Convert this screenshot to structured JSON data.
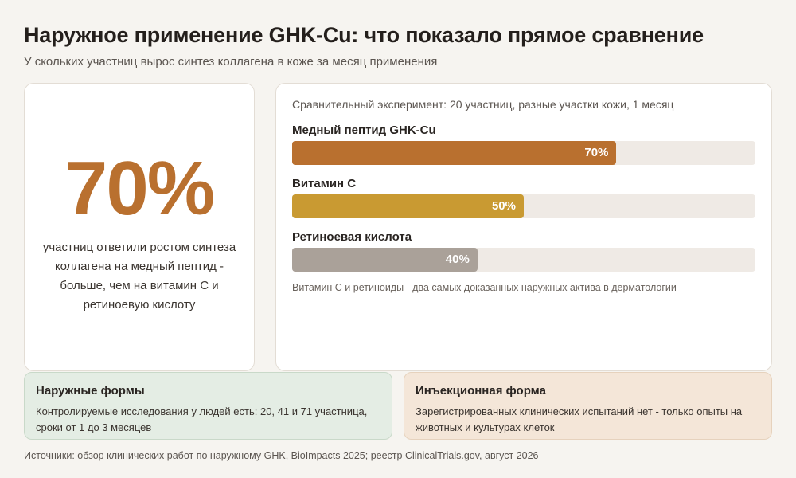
{
  "header": {
    "title": "Наружное применение GHK-Cu: что показало прямое сравнение",
    "subtitle": "У скольких участниц вырос синтез коллагена в коже за месяц применения"
  },
  "highlight": {
    "value": "70%",
    "text": "участниц ответили ростом синтеза коллагена на медный пептид - больше, чем на витамин С и ретиноевую кислоту"
  },
  "chart_data": {
    "type": "bar",
    "orientation": "horizontal",
    "title": "Сравнительный эксперимент: 20 участниц, разные участки кожи, 1 месяц",
    "categories": [
      "Медный пептид GHK-Cu",
      "Витамин С",
      "Ретиноевая кислота"
    ],
    "values": [
      70,
      50,
      40
    ],
    "value_labels": [
      "70%",
      "50%",
      "40%"
    ],
    "colors": [
      "#b9702f",
      "#c99a32",
      "#aaa199"
    ],
    "xlim": [
      0,
      100
    ],
    "unit": "%",
    "note": "Витамин С и ретиноиды - два самых доказанных наружных актива в дерматологии"
  },
  "info": {
    "topical": {
      "title": "Наружные формы",
      "text": "Контролируемые исследования у людей есть: 20, 41 и 71 участница, сроки от 1 до 3 месяцев"
    },
    "injectable": {
      "title": "Инъекционная форма",
      "text": "Зарегистрированных клинических испытаний нет - только опыты на животных и культурах клеток"
    }
  },
  "footer": {
    "sources": "Источники: обзор клинических работ по наружному GHK, BioImpacts 2025; реестр ClinicalTrials.gov, август 2026"
  }
}
